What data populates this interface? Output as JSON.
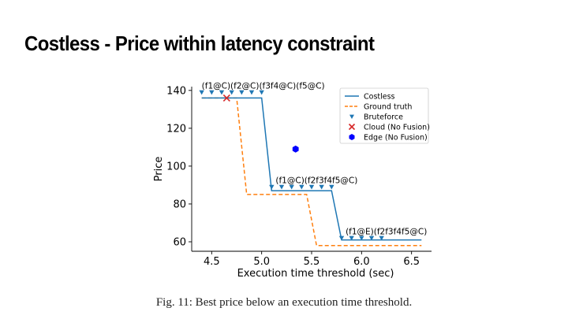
{
  "slide": {
    "title": "Costless - Price within latency constraint",
    "caption": "Fig. 11: Best price below an execution time threshold."
  },
  "colors": {
    "costless": "#1f77b4",
    "ground_truth": "#ff7f0e",
    "bruteforce": "#1f77b4",
    "cloud": "#d62728",
    "edge": "#0000ff"
  },
  "chart_data": {
    "type": "line",
    "title": "",
    "xlabel": "Execution time threshold (sec)",
    "ylabel": "Price",
    "xlim": [
      4.3,
      6.7
    ],
    "ylim": [
      55,
      142
    ],
    "xticks": [
      4.5,
      5.0,
      5.5,
      6.0,
      6.5
    ],
    "xtick_labels": [
      "4.5",
      "5.0",
      "5.5",
      "6.0",
      "6.5"
    ],
    "yticks": [
      60,
      80,
      100,
      120,
      140
    ],
    "ytick_labels": [
      "60",
      "80",
      "100",
      "120",
      "140"
    ],
    "legend_position": "top-right",
    "series": [
      {
        "name": "Costless",
        "style": "solid",
        "x": [
          4.4,
          5.0,
          5.1,
          5.7,
          5.8,
          6.6
        ],
        "y": [
          136,
          136,
          87,
          87,
          61,
          61
        ]
      },
      {
        "name": "Ground truth",
        "style": "dashed",
        "x": [
          4.4,
          4.75,
          4.85,
          5.45,
          5.55,
          6.6
        ],
        "y": [
          136,
          136,
          85,
          85,
          58,
          58
        ]
      },
      {
        "name": "Bruteforce",
        "style": "marker-triangle-down",
        "x": [
          4.4,
          4.5,
          4.6,
          4.7,
          4.8,
          4.9,
          5.0,
          5.1,
          5.2,
          5.3,
          5.4,
          5.5,
          5.6,
          5.7,
          5.8,
          5.9,
          6.0,
          6.1,
          6.2
        ],
        "y": [
          139,
          139,
          139,
          139,
          139,
          139,
          139,
          89,
          89,
          89,
          89,
          89,
          89,
          89,
          62,
          62,
          62,
          62,
          62
        ]
      },
      {
        "name": "Cloud (No Fusion)",
        "style": "marker-x",
        "x": [
          4.65
        ],
        "y": [
          136
        ]
      },
      {
        "name": "Edge (No Fusion)",
        "style": "marker-hexagon",
        "x": [
          5.34
        ],
        "y": [
          109
        ]
      }
    ],
    "annotations": [
      {
        "text": "(f1@C)(f2@C)(f3f4@C)(f5@C)",
        "x": 4.4,
        "y": 141
      },
      {
        "text": "(f1@C)(f2f3f4f5@C)",
        "x": 5.14,
        "y": 91
      },
      {
        "text": "(f1@E)(f2f3f4f5@C)",
        "x": 5.84,
        "y": 64
      }
    ]
  }
}
